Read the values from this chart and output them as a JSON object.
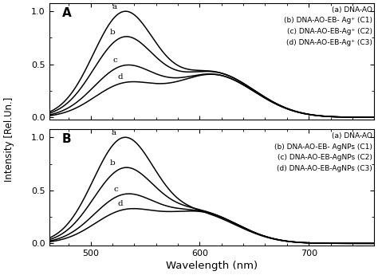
{
  "xlim": [
    462,
    760
  ],
  "ylim": [
    -0.02,
    1.08
  ],
  "xlabel": "Wavelength (nm)",
  "ylabel": "Intensity [Rel.Un.]",
  "panel_A_label": "A",
  "panel_B_label": "B",
  "legend_A": [
    "(a) DNA-AO",
    "(b) DNA-AO-EB- Ag⁺ (C1)",
    "(c) DNA-AO-EB-Ag⁺ (C2)",
    "(d) DNA-AO-EB-Ag⁺ (C3)"
  ],
  "legend_B": [
    "(a) DNA-AO",
    "(b) DNA-AO-EB- AgNPs (C1)",
    "(c) DNA-AO-EB-AgNPs (C2)",
    "(d) DNA-AO-EB-AgNPs (C3)"
  ],
  "xticks": [
    500,
    600,
    700
  ],
  "yticks": [
    0.0,
    0.5,
    1.0
  ],
  "background_color": "white"
}
